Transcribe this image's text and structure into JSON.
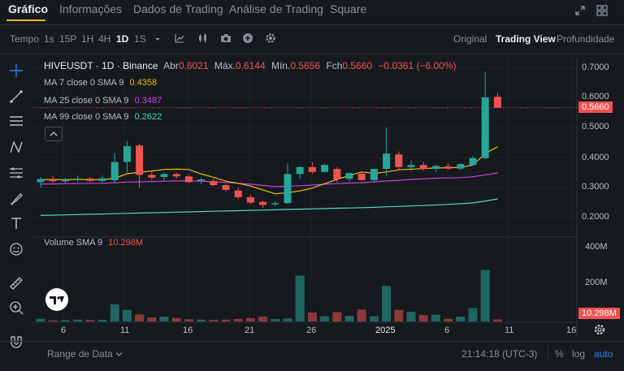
{
  "nav": {
    "tabs": [
      "Gráfico",
      "Informações",
      "Dados de Trading",
      "Análise de Trading",
      "Square"
    ]
  },
  "toolbar": {
    "time_label": "Tempo",
    "intervals": [
      "1s",
      "15P",
      "1H",
      "4H",
      "1D",
      "1S"
    ],
    "active_interval": "1D",
    "views": [
      "Original",
      "Trading View",
      "Profundidade"
    ],
    "active_view": "Trading View"
  },
  "legend": {
    "symbol": "HIVEUSDT · 1D · Binance",
    "open_label": "Abr",
    "open": "0.6021",
    "high_label": "Máx.",
    "high": "0.6144",
    "low_label": "Mín.",
    "low": "0.5656",
    "close_label": "Fch",
    "close": "0.5660",
    "change": "−0.0361 (−6.00%)",
    "ma7_label": "MA 7 close 0 SMA 9",
    "ma7_value": "0.4358",
    "ma25_label": "MA 25 close 0 SMA 9",
    "ma25_value": "0.3487",
    "ma99_label": "MA 99 close 0 SMA 9",
    "ma99_value": "0.2622",
    "volume_label": "Volume SMA 9",
    "volume_value": "10.298M"
  },
  "axes": {
    "price_ticks": [
      "0.7000",
      "0.6000",
      "0.5000",
      "0.4000",
      "0.3000",
      "0.2000"
    ],
    "current_price": "0.5660",
    "volume_ticks": [
      "400M",
      "200M"
    ],
    "current_volume": "10.298M",
    "date_ticks": [
      "6",
      "11",
      "16",
      "21",
      "26",
      "2025",
      "6",
      "11",
      "16"
    ]
  },
  "footer": {
    "range_label": "Range de Data",
    "clock": "21:14:18 (UTC-3)",
    "pct": "%",
    "log": "log",
    "auto": "auto"
  },
  "colors": {
    "up": "#26a69a",
    "down": "#ef5350",
    "accent": "#f0b90b",
    "ma7": "#f0b90b",
    "ma25": "#c940e0",
    "ma99": "#4fd6c4"
  },
  "chart_data": {
    "type": "candlestick",
    "timeframe": "1D",
    "x_ticks": [
      "6",
      "11",
      "16",
      "21",
      "26",
      "2025",
      "6",
      "11",
      "16"
    ],
    "ylim": [
      0.18,
      0.72
    ],
    "candles": [
      {
        "o": 0.318,
        "h": 0.335,
        "l": 0.3,
        "c": 0.328
      },
      {
        "o": 0.328,
        "h": 0.338,
        "l": 0.316,
        "c": 0.321
      },
      {
        "o": 0.321,
        "h": 0.332,
        "l": 0.314,
        "c": 0.326
      },
      {
        "o": 0.326,
        "h": 0.34,
        "l": 0.318,
        "c": 0.33
      },
      {
        "o": 0.33,
        "h": 0.335,
        "l": 0.318,
        "c": 0.322
      },
      {
        "o": 0.322,
        "h": 0.34,
        "l": 0.318,
        "c": 0.331
      },
      {
        "o": 0.324,
        "h": 0.415,
        "l": 0.318,
        "c": 0.385
      },
      {
        "o": 0.385,
        "h": 0.455,
        "l": 0.35,
        "c": 0.438
      },
      {
        "o": 0.44,
        "h": 0.445,
        "l": 0.3,
        "c": 0.342
      },
      {
        "o": 0.342,
        "h": 0.352,
        "l": 0.325,
        "c": 0.333
      },
      {
        "o": 0.335,
        "h": 0.35,
        "l": 0.32,
        "c": 0.345
      },
      {
        "o": 0.345,
        "h": 0.35,
        "l": 0.33,
        "c": 0.337
      },
      {
        "o": 0.337,
        "h": 0.342,
        "l": 0.315,
        "c": 0.318
      },
      {
        "o": 0.322,
        "h": 0.332,
        "l": 0.312,
        "c": 0.327
      },
      {
        "o": 0.322,
        "h": 0.33,
        "l": 0.305,
        "c": 0.308
      },
      {
        "o": 0.308,
        "h": 0.312,
        "l": 0.285,
        "c": 0.292
      },
      {
        "o": 0.29,
        "h": 0.3,
        "l": 0.262,
        "c": 0.268
      },
      {
        "o": 0.268,
        "h": 0.275,
        "l": 0.245,
        "c": 0.25
      },
      {
        "o": 0.252,
        "h": 0.256,
        "l": 0.232,
        "c": 0.242
      },
      {
        "o": 0.244,
        "h": 0.255,
        "l": 0.238,
        "c": 0.248
      },
      {
        "o": 0.248,
        "h": 0.38,
        "l": 0.245,
        "c": 0.345
      },
      {
        "o": 0.345,
        "h": 0.37,
        "l": 0.328,
        "c": 0.368
      },
      {
        "o": 0.368,
        "h": 0.385,
        "l": 0.345,
        "c": 0.352
      },
      {
        "o": 0.352,
        "h": 0.38,
        "l": 0.35,
        "c": 0.375
      },
      {
        "o": 0.362,
        "h": 0.368,
        "l": 0.318,
        "c": 0.327
      },
      {
        "o": 0.329,
        "h": 0.35,
        "l": 0.32,
        "c": 0.348
      },
      {
        "o": 0.346,
        "h": 0.354,
        "l": 0.32,
        "c": 0.325
      },
      {
        "o": 0.325,
        "h": 0.362,
        "l": 0.32,
        "c": 0.362
      },
      {
        "o": 0.362,
        "h": 0.5,
        "l": 0.338,
        "c": 0.413
      },
      {
        "o": 0.41,
        "h": 0.42,
        "l": 0.355,
        "c": 0.368
      },
      {
        "o": 0.368,
        "h": 0.39,
        "l": 0.355,
        "c": 0.375
      },
      {
        "o": 0.375,
        "h": 0.385,
        "l": 0.355,
        "c": 0.362
      },
      {
        "o": 0.362,
        "h": 0.375,
        "l": 0.35,
        "c": 0.372
      },
      {
        "o": 0.37,
        "h": 0.38,
        "l": 0.358,
        "c": 0.363
      },
      {
        "o": 0.363,
        "h": 0.38,
        "l": 0.358,
        "c": 0.378
      },
      {
        "o": 0.375,
        "h": 0.405,
        "l": 0.372,
        "c": 0.398
      },
      {
        "o": 0.398,
        "h": 0.685,
        "l": 0.395,
        "c": 0.6
      },
      {
        "o": 0.6021,
        "h": 0.6144,
        "l": 0.5656,
        "c": 0.566
      }
    ],
    "volume": [
      14,
      6,
      7,
      10,
      8,
      9,
      92,
      62,
      38,
      22,
      26,
      18,
      12,
      10,
      9,
      10,
      14,
      18,
      26,
      13,
      16,
      246,
      48,
      28,
      50,
      30,
      64,
      28,
      190,
      62,
      52,
      34,
      36,
      14,
      26,
      72,
      276,
      11
    ],
    "volume_ylim": [
      0,
      440
    ],
    "ma7": [
      0.326,
      0.327,
      0.326,
      0.327,
      0.326,
      0.326,
      0.331,
      0.346,
      0.351,
      0.355,
      0.36,
      0.361,
      0.36,
      0.345,
      0.334,
      0.321,
      0.314,
      0.305,
      0.292,
      0.279,
      0.283,
      0.289,
      0.298,
      0.313,
      0.327,
      0.34,
      0.352,
      0.347,
      0.352,
      0.359,
      0.361,
      0.363,
      0.365,
      0.366,
      0.367,
      0.375,
      0.413,
      0.436
    ],
    "ma25": [
      0.312,
      0.312,
      0.313,
      0.313,
      0.314,
      0.314,
      0.316,
      0.318,
      0.319,
      0.32,
      0.321,
      0.322,
      0.322,
      0.321,
      0.319,
      0.317,
      0.314,
      0.311,
      0.307,
      0.303,
      0.304,
      0.306,
      0.308,
      0.311,
      0.313,
      0.315,
      0.316,
      0.319,
      0.322,
      0.324,
      0.327,
      0.329,
      0.331,
      0.332,
      0.333,
      0.336,
      0.342,
      0.3487
    ],
    "ma99": [
      0.207,
      0.208,
      0.209,
      0.21,
      0.211,
      0.212,
      0.213,
      0.214,
      0.215,
      0.216,
      0.217,
      0.218,
      0.219,
      0.22,
      0.221,
      0.222,
      0.223,
      0.224,
      0.225,
      0.226,
      0.227,
      0.228,
      0.229,
      0.23,
      0.231,
      0.232,
      0.233,
      0.234,
      0.236,
      0.237,
      0.239,
      0.24,
      0.242,
      0.244,
      0.246,
      0.249,
      0.255,
      0.2622
    ]
  }
}
